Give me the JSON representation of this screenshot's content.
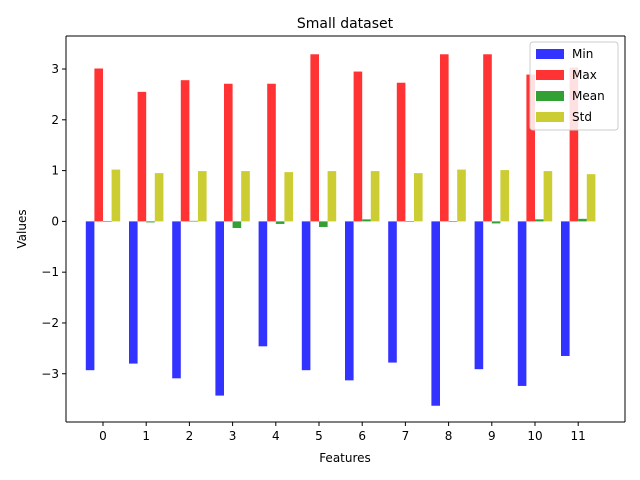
{
  "chart_data": {
    "type": "bar",
    "title": "Small dataset",
    "xlabel": "Features",
    "ylabel": "Values",
    "categories": [
      "0",
      "1",
      "2",
      "3",
      "4",
      "5",
      "6",
      "7",
      "8",
      "9",
      "10",
      "11"
    ],
    "ylim": [
      -3.95,
      3.65
    ],
    "yticks": [
      -3,
      -2,
      -1,
      0,
      1,
      2,
      3
    ],
    "ytick_labels": [
      "−3",
      "−2",
      "−1",
      "0",
      "1",
      "2",
      "3"
    ],
    "legend_position": "top-right",
    "series": [
      {
        "name": "Min",
        "color": "#3333ff",
        "values": [
          -2.93,
          -2.8,
          -3.09,
          -3.43,
          -2.46,
          -2.93,
          -3.13,
          -2.78,
          -3.63,
          -2.91,
          -3.24,
          -2.65
        ]
      },
      {
        "name": "Max",
        "color": "#ff3333",
        "values": [
          3.01,
          2.55,
          2.78,
          2.71,
          2.71,
          3.29,
          2.95,
          2.73,
          3.29,
          3.29,
          2.89,
          3.03
        ]
      },
      {
        "name": "Mean",
        "color": "#33a033",
        "values": [
          0.0,
          -0.02,
          0.01,
          -0.13,
          -0.05,
          -0.11,
          0.04,
          0.0,
          0.0,
          -0.04,
          0.04,
          0.05
        ]
      },
      {
        "name": "Std",
        "color": "#cccc33",
        "values": [
          1.02,
          0.95,
          0.99,
          0.99,
          0.97,
          0.99,
          0.99,
          0.95,
          1.02,
          1.01,
          0.99,
          0.93
        ]
      }
    ]
  }
}
